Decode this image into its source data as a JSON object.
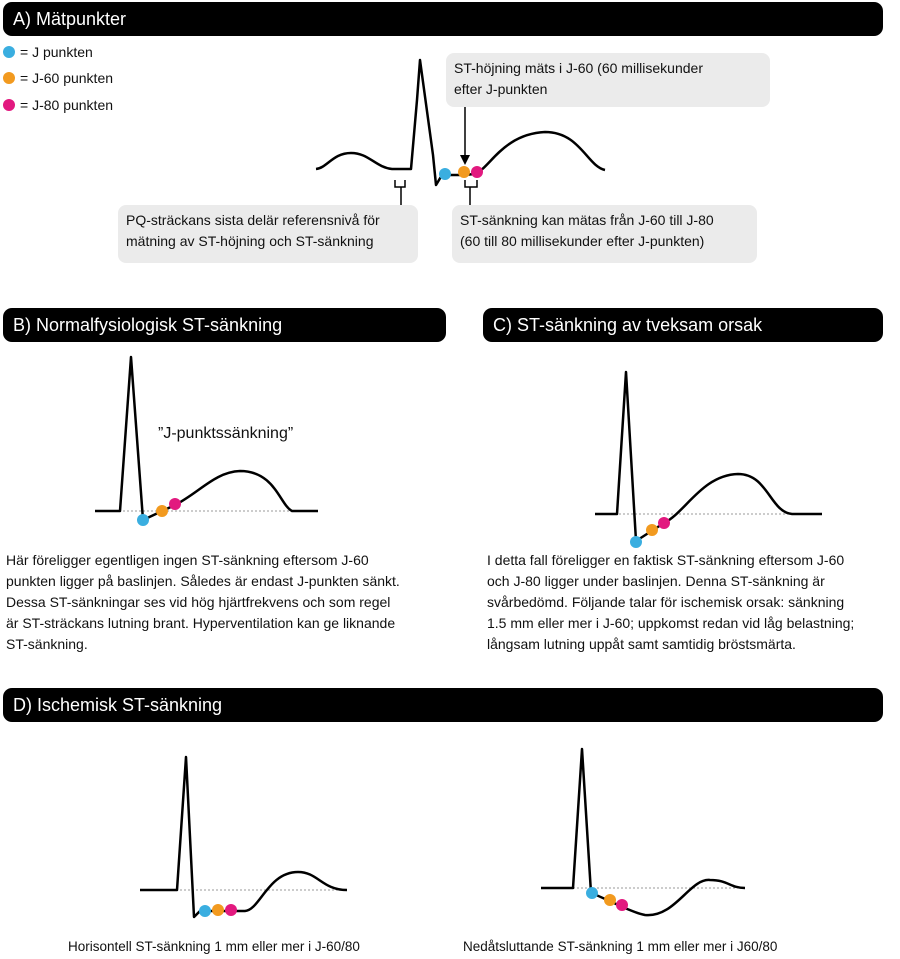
{
  "sections": {
    "a": {
      "title": "A) Mätpunkter"
    },
    "b": {
      "title": "B) Normalfysiologisk ST-sänkning"
    },
    "c": {
      "title": "C) ST-sänkning av tveksam orsak"
    },
    "d": {
      "title": "D) Ischemisk ST-sänkning"
    }
  },
  "legend": [
    {
      "label": "= J punkten",
      "color": "#3aaee0"
    },
    {
      "label": "= J-60 punkten",
      "color": "#f29a1f"
    },
    {
      "label": "= J-80 punkten",
      "color": "#e2197f"
    }
  ],
  "callouts": {
    "st_hojning": [
      "ST-höjning mäts i J-60 (60 millisekunder",
      "efter J-punkten"
    ],
    "pq": [
      "PQ-sträckans sista delär referensnivå för",
      "mätning av ST-höjning och ST-sänkning"
    ],
    "st_sankning": [
      "ST-sänkning kan mätas från J-60 till J-80",
      "(60 till 80 millisekunder efter J-punkten)"
    ]
  },
  "b": {
    "annotation": "”J-punktssänkning”",
    "text": [
      "Här föreligger egentligen ingen ST-sänkning eftersom J-60",
      "punkten ligger på baslinjen. Således är endast J-punkten sänkt.",
      "Dessa ST-sänkningar ses vid hög hjärtfrekvens och som regel",
      "är ST-sträckans lutning brant. Hyperventilation kan ge liknande",
      "ST-sänkning."
    ]
  },
  "c": {
    "text": [
      "I detta fall föreligger en faktisk ST-sänkning eftersom J-60",
      "och J-80 ligger under baslinjen. Denna ST-sänkning är",
      "svårbedömd. Följande talar för ischemisk orsak: sänkning",
      "1.5 mm eller mer i J-60; uppkomst redan vid låg belastning;",
      "långsam lutning uppåt samt samtidig bröstsmärta."
    ]
  },
  "d": {
    "caption_left": "Horisontell ST-sänkning 1 mm eller mer i J-60/80",
    "caption_right": "Nedåtsluttande ST-sänkning 1 mm eller mer i J60/80"
  }
}
